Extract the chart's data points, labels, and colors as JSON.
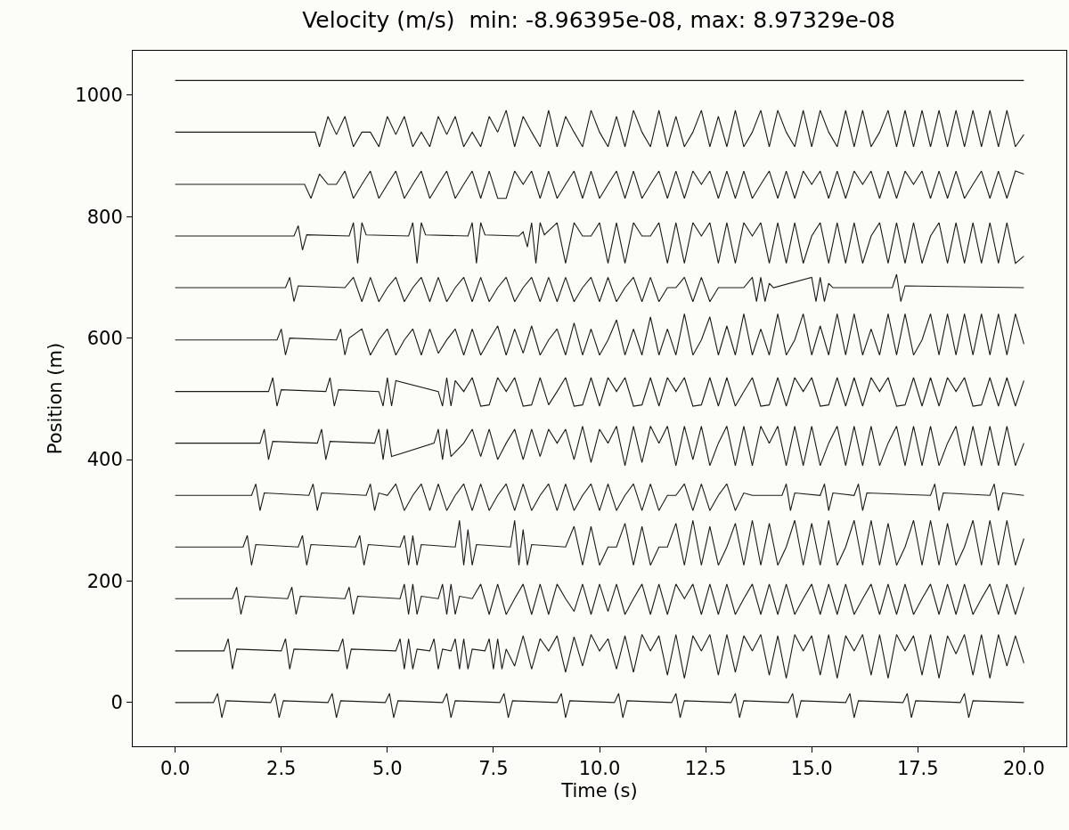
{
  "chart_data": {
    "type": "line",
    "title": "Velocity (m/s)  min: -8.96395e-08, max: 8.97329e-08",
    "xlabel": "Time (s)",
    "ylabel": "Position (m)",
    "xlim": [
      -1,
      21
    ],
    "ylim": [
      -72,
      1073
    ],
    "xticks": [
      {
        "value": 0,
        "label": "0.0"
      },
      {
        "value": 2.5,
        "label": "2.5"
      },
      {
        "value": 5,
        "label": "5.0"
      },
      {
        "value": 7.5,
        "label": "7.5"
      },
      {
        "value": 10,
        "label": "10.0"
      },
      {
        "value": 12.5,
        "label": "12.5"
      },
      {
        "value": 15,
        "label": "15.0"
      },
      {
        "value": 17.5,
        "label": "17.5"
      },
      {
        "value": 20,
        "label": "20.0"
      }
    ],
    "yticks": [
      0,
      200,
      400,
      600,
      800,
      1000
    ],
    "grid": false,
    "marker": "none",
    "line_style": "solid",
    "series": [
      {
        "color": "#1a1a1a",
        "x": [
          0,
          0.9,
          1.0,
          1.1,
          1.2,
          2.25,
          2.35,
          2.45,
          2.55,
          3.6,
          3.7,
          3.8,
          3.9,
          4.95,
          5.05,
          5.15,
          5.25,
          6.3,
          6.4,
          6.5,
          6.6,
          7.65,
          7.75,
          7.85,
          7.95,
          9.0,
          9.1,
          9.2,
          9.3,
          10.35,
          10.45,
          10.55,
          10.65,
          11.7,
          11.8,
          11.9,
          12.0,
          13.1,
          13.2,
          13.3,
          13.4,
          14.45,
          14.55,
          14.65,
          14.75,
          15.8,
          15.9,
          16.0,
          16.1,
          17.15,
          17.25,
          17.35,
          17.45,
          18.5,
          18.6,
          18.7,
          18.8,
          20
        ],
        "values": [
          0,
          0,
          15,
          -25,
          3,
          0,
          15,
          -25,
          3,
          0,
          15,
          -25,
          3,
          0,
          15,
          -25,
          3,
          0,
          15,
          -25,
          3,
          0,
          15,
          -25,
          3,
          0,
          15,
          -25,
          3,
          0,
          15,
          -25,
          3,
          0,
          15,
          -25,
          3,
          0,
          15,
          -25,
          3,
          0,
          15,
          -25,
          3,
          0,
          15,
          -25,
          3,
          0,
          15,
          -25,
          3,
          0,
          15,
          -25,
          3,
          0
        ]
      },
      {
        "color": "#1a1a1a",
        "x": [
          0,
          1.15,
          1.25,
          1.35,
          1.45,
          2.5,
          2.6,
          2.7,
          2.8,
          3.85,
          3.95,
          4.05,
          4.15,
          5.2,
          5.3,
          5.4,
          5.5,
          5.6,
          5.7,
          6.0,
          6.1,
          6.2,
          6.3,
          6.5,
          6.6,
          6.7,
          6.8,
          6.9,
          7.0,
          7.3,
          7.4,
          7.5,
          7.6,
          7.7,
          7.8,
          8.0,
          8.2,
          8.4,
          8.6,
          8.8,
          9.0,
          9.2,
          9.4,
          9.6,
          9.8,
          10.0,
          10.2,
          10.4,
          10.6,
          10.8,
          11.0,
          11.2,
          11.4,
          11.6,
          11.8,
          12.0,
          12.2,
          12.4,
          12.6,
          12.8,
          13.0,
          13.2,
          13.4,
          13.6,
          13.8,
          14.0,
          14.2,
          14.4,
          14.6,
          14.8,
          15.0,
          15.2,
          15.4,
          15.6,
          15.8,
          16.0,
          16.2,
          16.4,
          16.6,
          16.8,
          17.0,
          17.2,
          17.4,
          17.6,
          17.8,
          18.0,
          18.2,
          18.4,
          18.6,
          18.8,
          19.0,
          19.2,
          19.4,
          19.6,
          19.8,
          20.0
        ],
        "values": [
          85,
          85,
          105,
          55,
          88,
          85,
          105,
          55,
          88,
          85,
          105,
          55,
          88,
          85,
          105,
          55,
          105,
          55,
          88,
          85,
          105,
          55,
          88,
          85,
          105,
          55,
          105,
          55,
          88,
          85,
          105,
          55,
          105,
          55,
          88,
          60,
          110,
          55,
          105,
          85,
          110,
          50,
          108,
          60,
          112,
          85,
          105,
          55,
          110,
          50,
          112,
          85,
          110,
          45,
          112,
          40,
          110,
          85,
          112,
          45,
          112,
          50,
          110,
          85,
          112,
          45,
          110,
          40,
          112,
          85,
          110,
          45,
          112,
          40,
          110,
          85,
          112,
          45,
          112,
          40,
          112,
          85,
          110,
          45,
          112,
          40,
          110,
          80,
          112,
          45,
          112,
          40,
          112,
          60,
          110,
          65
        ]
      },
      {
        "color": "#1a1a1a",
        "x": [
          0,
          1.35,
          1.45,
          1.55,
          1.65,
          2.65,
          2.75,
          2.85,
          2.95,
          4.0,
          4.1,
          4.2,
          4.3,
          5.3,
          5.4,
          5.5,
          5.6,
          5.7,
          5.8,
          6.2,
          6.3,
          6.4,
          6.5,
          6.6,
          6.7,
          7.0,
          7.2,
          7.4,
          7.6,
          7.8,
          8.0,
          8.2,
          8.4,
          8.6,
          8.8,
          9.0,
          9.2,
          9.4,
          9.6,
          9.8,
          10.0,
          10.2,
          10.4,
          10.6,
          10.8,
          11.0,
          11.2,
          11.4,
          11.6,
          11.8,
          12.0,
          12.2,
          12.4,
          12.6,
          12.8,
          13.0,
          13.2,
          13.4,
          13.6,
          13.8,
          14.0,
          14.2,
          14.4,
          14.6,
          14.8,
          15.0,
          15.2,
          15.4,
          15.6,
          15.8,
          16.0,
          16.2,
          16.4,
          16.6,
          16.8,
          17.0,
          17.2,
          17.4,
          17.6,
          17.8,
          18.0,
          18.2,
          18.4,
          18.6,
          18.8,
          19.0,
          19.2,
          19.4,
          19.6,
          19.8,
          20.0
        ],
        "values": [
          171,
          171,
          190,
          145,
          175,
          171,
          190,
          145,
          175,
          171,
          190,
          145,
          175,
          171,
          195,
          145,
          195,
          145,
          175,
          171,
          195,
          145,
          195,
          145,
          175,
          171,
          195,
          145,
          195,
          145,
          171,
          195,
          145,
          195,
          145,
          195,
          171,
          150,
          195,
          145,
          195,
          150,
          195,
          145,
          171,
          195,
          145,
          195,
          145,
          195,
          171,
          195,
          145,
          195,
          145,
          195,
          145,
          171,
          195,
          145,
          195,
          145,
          195,
          145,
          171,
          195,
          145,
          195,
          145,
          195,
          145,
          171,
          195,
          145,
          195,
          145,
          195,
          145,
          171,
          195,
          145,
          195,
          145,
          195,
          145,
          171,
          195,
          145,
          195,
          145,
          190
        ]
      },
      {
        "color": "#1a1a1a",
        "x": [
          0,
          1.6,
          1.7,
          1.8,
          1.9,
          2.9,
          3.0,
          3.1,
          3.2,
          4.25,
          4.35,
          4.45,
          4.55,
          5.3,
          5.4,
          5.5,
          5.6,
          5.7,
          5.8,
          6.6,
          6.7,
          6.8,
          6.9,
          7.0,
          7.1,
          7.9,
          8.0,
          8.1,
          8.2,
          8.3,
          8.4,
          9.2,
          9.4,
          9.6,
          9.8,
          10.0,
          10.2,
          10.4,
          10.6,
          10.8,
          11.0,
          11.2,
          11.4,
          11.6,
          11.8,
          12.0,
          12.2,
          12.4,
          12.6,
          12.8,
          13.0,
          13.2,
          13.4,
          13.6,
          13.8,
          14.0,
          14.2,
          14.4,
          14.6,
          14.8,
          15.0,
          15.2,
          15.4,
          15.6,
          15.8,
          16.0,
          16.2,
          16.4,
          16.6,
          16.8,
          17.0,
          17.2,
          17.4,
          17.6,
          17.8,
          18.0,
          18.2,
          18.4,
          18.6,
          18.8,
          19.0,
          19.2,
          19.4,
          19.6,
          19.8,
          20.0
        ],
        "values": [
          256,
          256,
          275,
          226,
          260,
          256,
          275,
          226,
          260,
          256,
          275,
          226,
          260,
          256,
          275,
          226,
          275,
          226,
          260,
          256,
          300,
          226,
          285,
          226,
          260,
          256,
          300,
          226,
          285,
          226,
          260,
          256,
          290,
          226,
          290,
          226,
          256,
          256,
          295,
          226,
          290,
          226,
          256,
          256,
          295,
          226,
          300,
          226,
          290,
          226,
          256,
          295,
          226,
          300,
          226,
          295,
          226,
          256,
          300,
          226,
          295,
          226,
          300,
          226,
          256,
          300,
          226,
          300,
          226,
          295,
          226,
          256,
          300,
          226,
          300,
          226,
          295,
          226,
          256,
          300,
          226,
          300,
          226,
          300,
          226,
          270
        ]
      },
      {
        "color": "#1a1a1a",
        "x": [
          0,
          1.8,
          1.9,
          2.0,
          2.1,
          3.15,
          3.25,
          3.35,
          3.45,
          4.5,
          4.6,
          4.7,
          4.8,
          5.0,
          5.2,
          5.4,
          5.6,
          5.8,
          6.0,
          6.2,
          6.4,
          6.6,
          6.8,
          7.0,
          7.2,
          7.4,
          7.6,
          7.8,
          8.0,
          8.2,
          8.4,
          8.6,
          8.8,
          9.0,
          9.2,
          9.4,
          9.6,
          9.8,
          10.0,
          10.2,
          10.4,
          10.6,
          10.8,
          11.0,
          11.2,
          11.4,
          11.6,
          11.8,
          12.0,
          12.2,
          12.4,
          12.6,
          12.8,
          13.0,
          13.2,
          13.4,
          13.6,
          13.8,
          14.3,
          14.4,
          14.5,
          14.6,
          15.2,
          15.3,
          15.4,
          15.5,
          16.0,
          16.1,
          16.2,
          16.3,
          17.8,
          17.9,
          18.0,
          18.1,
          19.2,
          19.3,
          19.4,
          19.5,
          20
        ],
        "values": [
          341,
          341,
          360,
          316,
          345,
          341,
          360,
          316,
          345,
          341,
          360,
          316,
          345,
          341,
          360,
          316,
          341,
          360,
          316,
          360,
          316,
          341,
          360,
          316,
          360,
          316,
          341,
          360,
          316,
          360,
          316,
          341,
          360,
          316,
          360,
          316,
          341,
          360,
          316,
          360,
          316,
          341,
          360,
          316,
          360,
          316,
          341,
          341,
          360,
          316,
          360,
          316,
          341,
          360,
          316,
          345,
          341,
          341,
          341,
          360,
          316,
          345,
          341,
          360,
          316,
          345,
          341,
          360,
          316,
          345,
          341,
          360,
          316,
          345,
          341,
          360,
          316,
          345,
          341
        ]
      },
      {
        "color": "#1a1a1a",
        "x": [
          0,
          2.0,
          2.1,
          2.2,
          2.3,
          3.35,
          3.45,
          3.55,
          3.65,
          4.7,
          4.8,
          4.9,
          5.0,
          5.1,
          6.1,
          6.2,
          6.3,
          6.4,
          6.5,
          6.8,
          7.0,
          7.2,
          7.4,
          7.6,
          7.8,
          8.0,
          8.2,
          8.4,
          8.6,
          8.8,
          9.0,
          9.2,
          9.4,
          9.6,
          9.8,
          10.0,
          10.2,
          10.4,
          10.6,
          10.8,
          11.0,
          11.2,
          11.4,
          11.6,
          11.8,
          12.0,
          12.2,
          12.4,
          12.6,
          12.8,
          13.0,
          13.2,
          13.4,
          13.6,
          13.8,
          14.0,
          14.2,
          14.4,
          14.6,
          14.8,
          15.0,
          15.2,
          15.4,
          15.6,
          15.8,
          16.0,
          16.2,
          16.4,
          16.6,
          16.8,
          17.0,
          17.2,
          17.4,
          17.6,
          17.8,
          18.0,
          18.2,
          18.4,
          18.6,
          18.8,
          19.0,
          19.2,
          19.4,
          19.6,
          19.8,
          20.0
        ],
        "values": [
          427,
          427,
          450,
          400,
          430,
          427,
          450,
          400,
          430,
          427,
          450,
          400,
          450,
          405,
          427,
          450,
          400,
          450,
          405,
          427,
          450,
          405,
          450,
          400,
          427,
          450,
          400,
          450,
          405,
          450,
          427,
          450,
          400,
          455,
          395,
          450,
          427,
          455,
          390,
          455,
          395,
          455,
          427,
          455,
          390,
          455,
          400,
          455,
          390,
          427,
          455,
          390,
          455,
          390,
          455,
          427,
          455,
          390,
          455,
          390,
          455,
          390,
          427,
          455,
          390,
          455,
          390,
          455,
          390,
          427,
          455,
          390,
          455,
          390,
          455,
          390,
          427,
          455,
          390,
          455,
          390,
          455,
          390,
          455,
          390,
          427
        ]
      },
      {
        "color": "#1a1a1a",
        "x": [
          0,
          2.2,
          2.3,
          2.4,
          2.5,
          3.55,
          3.65,
          3.75,
          3.85,
          4.8,
          4.9,
          5.0,
          5.1,
          5.2,
          6.2,
          6.3,
          6.4,
          6.5,
          6.6,
          6.8,
          7.0,
          7.2,
          7.4,
          7.6,
          7.8,
          8.0,
          8.2,
          8.4,
          8.6,
          8.8,
          9.0,
          9.2,
          9.4,
          9.6,
          9.8,
          10.0,
          10.2,
          10.4,
          10.6,
          10.8,
          11.0,
          11.2,
          11.4,
          11.6,
          11.8,
          12.0,
          12.2,
          12.4,
          12.6,
          12.8,
          13.0,
          13.2,
          13.4,
          13.6,
          13.8,
          14.0,
          14.2,
          14.4,
          14.6,
          14.8,
          15.0,
          15.2,
          15.4,
          15.6,
          15.8,
          16.0,
          16.2,
          16.4,
          16.6,
          16.8,
          17.0,
          17.2,
          17.4,
          17.6,
          17.8,
          18.0,
          18.2,
          18.4,
          18.6,
          18.8,
          19.0,
          19.2,
          19.4,
          19.6,
          19.8,
          20.0
        ],
        "values": [
          512,
          512,
          535,
          488,
          515,
          512,
          535,
          488,
          515,
          512,
          488,
          535,
          488,
          530,
          512,
          488,
          535,
          488,
          530,
          512,
          535,
          488,
          490,
          535,
          512,
          535,
          488,
          490,
          535,
          490,
          512,
          535,
          488,
          490,
          535,
          488,
          535,
          512,
          535,
          488,
          490,
          535,
          488,
          535,
          512,
          535,
          488,
          490,
          535,
          488,
          535,
          488,
          512,
          535,
          488,
          490,
          535,
          488,
          535,
          512,
          535,
          488,
          490,
          535,
          488,
          535,
          488,
          535,
          512,
          535,
          488,
          490,
          535,
          488,
          535,
          488,
          535,
          512,
          535,
          488,
          490,
          535,
          488,
          535,
          488,
          530
        ]
      },
      {
        "color": "#1a1a1a",
        "x": [
          0,
          2.4,
          2.5,
          2.6,
          2.7,
          3.8,
          3.9,
          4.0,
          4.1,
          4.4,
          4.6,
          4.8,
          5.0,
          5.2,
          5.4,
          5.6,
          5.8,
          6.0,
          6.2,
          6.4,
          6.6,
          6.8,
          7.0,
          7.2,
          7.4,
          7.6,
          7.8,
          8.0,
          8.2,
          8.4,
          8.6,
          8.8,
          9.0,
          9.2,
          9.4,
          9.6,
          9.8,
          10.0,
          10.2,
          10.4,
          10.6,
          10.8,
          11.0,
          11.2,
          11.4,
          11.6,
          11.8,
          12.0,
          12.2,
          12.4,
          12.6,
          12.8,
          13.0,
          13.2,
          13.4,
          13.6,
          13.8,
          14.0,
          14.2,
          14.4,
          14.6,
          14.8,
          15.0,
          15.2,
          15.4,
          15.6,
          15.8,
          16.0,
          16.2,
          16.4,
          16.6,
          16.8,
          17.0,
          17.2,
          17.4,
          17.6,
          17.8,
          18.0,
          18.2,
          18.4,
          18.6,
          18.8,
          19.0,
          19.2,
          19.4,
          19.6,
          19.8,
          20.0
        ],
        "values": [
          597,
          597,
          615,
          572,
          600,
          597,
          615,
          572,
          600,
          615,
          572,
          597,
          615,
          572,
          597,
          615,
          572,
          615,
          575,
          597,
          615,
          572,
          615,
          572,
          597,
          620,
          572,
          615,
          575,
          620,
          572,
          597,
          615,
          572,
          625,
          572,
          615,
          572,
          597,
          630,
          572,
          615,
          572,
          635,
          572,
          615,
          572,
          640,
          572,
          597,
          635,
          572,
          620,
          572,
          640,
          572,
          615,
          572,
          640,
          572,
          597,
          640,
          572,
          620,
          572,
          640,
          572,
          640,
          572,
          615,
          572,
          640,
          572,
          640,
          572,
          597,
          640,
          572,
          640,
          572,
          640,
          572,
          640,
          572,
          640,
          572,
          640,
          590
        ]
      },
      {
        "color": "#1a1a1a",
        "x": [
          0,
          2.6,
          2.7,
          2.8,
          2.9,
          4.0,
          4.2,
          4.4,
          4.6,
          4.8,
          5.0,
          5.2,
          5.4,
          5.6,
          5.8,
          6.0,
          6.2,
          6.4,
          6.6,
          6.8,
          7.0,
          7.2,
          7.4,
          7.6,
          7.8,
          8.0,
          8.2,
          8.4,
          8.6,
          8.8,
          9.0,
          9.2,
          9.4,
          9.6,
          9.8,
          10.0,
          10.2,
          10.4,
          10.6,
          10.8,
          11.0,
          11.2,
          11.4,
          11.6,
          11.8,
          12.0,
          12.2,
          12.4,
          12.6,
          12.8,
          13.0,
          13.2,
          13.4,
          13.6,
          13.7,
          13.8,
          13.9,
          14.0,
          14.1,
          15.0,
          15.1,
          15.2,
          15.3,
          15.4,
          15.5,
          16.9,
          17.0,
          17.1,
          17.2,
          20
        ],
        "values": [
          683,
          683,
          700,
          660,
          686,
          683,
          700,
          660,
          700,
          660,
          683,
          700,
          660,
          683,
          700,
          660,
          700,
          660,
          683,
          700,
          660,
          700,
          660,
          683,
          700,
          660,
          683,
          700,
          660,
          700,
          660,
          700,
          660,
          683,
          700,
          660,
          700,
          660,
          683,
          700,
          660,
          700,
          660,
          683,
          683,
          700,
          660,
          700,
          660,
          683,
          683,
          683,
          683,
          700,
          660,
          700,
          660,
          690,
          683,
          700,
          660,
          700,
          660,
          690,
          683,
          683,
          705,
          660,
          686,
          683
        ]
      },
      {
        "color": "#1a1a1a",
        "x": [
          0,
          2.8,
          2.9,
          3.0,
          3.1,
          4.1,
          4.2,
          4.3,
          4.4,
          4.5,
          5.5,
          5.6,
          5.7,
          5.8,
          5.9,
          6.9,
          7.0,
          7.1,
          7.2,
          7.3,
          8.1,
          8.2,
          8.3,
          8.4,
          8.5,
          8.6,
          8.7,
          9.0,
          9.2,
          9.4,
          9.6,
          9.8,
          10.0,
          10.2,
          10.4,
          10.6,
          10.8,
          11.0,
          11.2,
          11.4,
          11.6,
          11.8,
          12.0,
          12.2,
          12.4,
          12.6,
          12.8,
          13.0,
          13.2,
          13.4,
          13.6,
          13.8,
          14.0,
          14.2,
          14.4,
          14.6,
          14.8,
          15.0,
          15.2,
          15.4,
          15.6,
          15.8,
          16.0,
          16.2,
          16.4,
          16.6,
          16.8,
          17.0,
          17.2,
          17.4,
          17.6,
          17.8,
          18.0,
          18.2,
          18.4,
          18.6,
          18.8,
          19.0,
          19.2,
          19.4,
          19.6,
          19.8,
          20.0
        ],
        "values": [
          768,
          768,
          785,
          745,
          770,
          768,
          790,
          723,
          790,
          770,
          768,
          790,
          723,
          790,
          770,
          768,
          790,
          723,
          790,
          770,
          768,
          775,
          750,
          790,
          723,
          790,
          770,
          790,
          723,
          790,
          768,
          768,
          790,
          723,
          790,
          723,
          790,
          768,
          768,
          790,
          723,
          790,
          723,
          790,
          768,
          790,
          723,
          790,
          723,
          790,
          768,
          790,
          723,
          790,
          723,
          790,
          723,
          768,
          790,
          723,
          790,
          723,
          790,
          723,
          768,
          790,
          723,
          790,
          723,
          790,
          723,
          768,
          790,
          723,
          790,
          723,
          790,
          723,
          790,
          723,
          790,
          723,
          735
        ]
      },
      {
        "color": "#1a1a1a",
        "x": [
          0,
          3.05,
          3.2,
          3.4,
          3.6,
          3.8,
          4.0,
          4.2,
          4.4,
          4.6,
          4.8,
          5.0,
          5.2,
          5.4,
          5.6,
          5.8,
          6.0,
          6.2,
          6.4,
          6.6,
          6.8,
          7.0,
          7.2,
          7.4,
          7.6,
          7.8,
          8.0,
          8.2,
          8.4,
          8.6,
          8.8,
          9.0,
          9.2,
          9.4,
          9.6,
          9.8,
          10.0,
          10.2,
          10.4,
          10.6,
          10.8,
          11.0,
          11.2,
          11.4,
          11.6,
          11.8,
          12.0,
          12.2,
          12.4,
          12.6,
          12.8,
          13.0,
          13.2,
          13.4,
          13.6,
          13.8,
          14.0,
          14.2,
          14.4,
          14.6,
          14.8,
          15.0,
          15.2,
          15.4,
          15.6,
          15.8,
          16.0,
          16.2,
          16.4,
          16.6,
          16.8,
          17.0,
          17.2,
          17.4,
          17.6,
          17.8,
          18.0,
          18.2,
          18.4,
          18.6,
          18.8,
          19.0,
          19.2,
          19.4,
          19.6,
          19.8,
          20.0
        ],
        "values": [
          853,
          853,
          830,
          870,
          853,
          853,
          875,
          830,
          853,
          875,
          830,
          853,
          875,
          830,
          853,
          875,
          830,
          853,
          875,
          830,
          853,
          875,
          830,
          875,
          830,
          830,
          875,
          853,
          875,
          830,
          875,
          830,
          853,
          875,
          830,
          875,
          830,
          853,
          875,
          830,
          875,
          830,
          853,
          875,
          830,
          875,
          830,
          875,
          853,
          875,
          830,
          875,
          830,
          875,
          830,
          853,
          875,
          830,
          875,
          830,
          875,
          853,
          875,
          830,
          875,
          830,
          875,
          853,
          875,
          830,
          875,
          830,
          875,
          853,
          875,
          830,
          875,
          830,
          875,
          830,
          853,
          875,
          830,
          875,
          830,
          875,
          870
        ]
      },
      {
        "color": "#1a1a1a",
        "x": [
          0,
          3.3,
          3.4,
          3.6,
          3.8,
          4.0,
          4.2,
          4.4,
          4.6,
          4.8,
          5.0,
          5.2,
          5.4,
          5.6,
          5.8,
          6.0,
          6.2,
          6.4,
          6.6,
          6.8,
          7.0,
          7.2,
          7.4,
          7.6,
          7.8,
          8.0,
          8.2,
          8.4,
          8.6,
          8.8,
          9.0,
          9.2,
          9.4,
          9.6,
          9.8,
          10.0,
          10.2,
          10.4,
          10.6,
          10.8,
          11.0,
          11.2,
          11.4,
          11.6,
          11.8,
          12.0,
          12.2,
          12.4,
          12.6,
          12.8,
          13.0,
          13.2,
          13.4,
          13.6,
          13.8,
          14.0,
          14.2,
          14.4,
          14.6,
          14.8,
          15.0,
          15.2,
          15.4,
          15.6,
          15.8,
          16.0,
          16.2,
          16.4,
          16.6,
          16.8,
          17.0,
          17.2,
          17.4,
          17.6,
          17.8,
          18.0,
          18.2,
          18.4,
          18.6,
          18.8,
          19.0,
          19.2,
          19.4,
          19.6,
          19.8,
          20.0
        ],
        "values": [
          939,
          939,
          915,
          965,
          935,
          965,
          915,
          939,
          939,
          915,
          965,
          935,
          965,
          915,
          939,
          915,
          965,
          935,
          965,
          915,
          939,
          915,
          965,
          939,
          975,
          915,
          965,
          939,
          915,
          975,
          915,
          965,
          939,
          915,
          975,
          939,
          915,
          965,
          915,
          975,
          939,
          915,
          975,
          915,
          965,
          915,
          939,
          975,
          915,
          965,
          915,
          975,
          915,
          939,
          975,
          915,
          975,
          939,
          915,
          975,
          915,
          975,
          939,
          915,
          975,
          915,
          975,
          915,
          939,
          975,
          915,
          975,
          915,
          975,
          915,
          975,
          915,
          975,
          915,
          975,
          915,
          975,
          915,
          975,
          915,
          935
        ]
      },
      {
        "color": "#1a1a1a",
        "x": [
          0,
          20
        ],
        "values": [
          1024,
          1024
        ]
      }
    ]
  }
}
